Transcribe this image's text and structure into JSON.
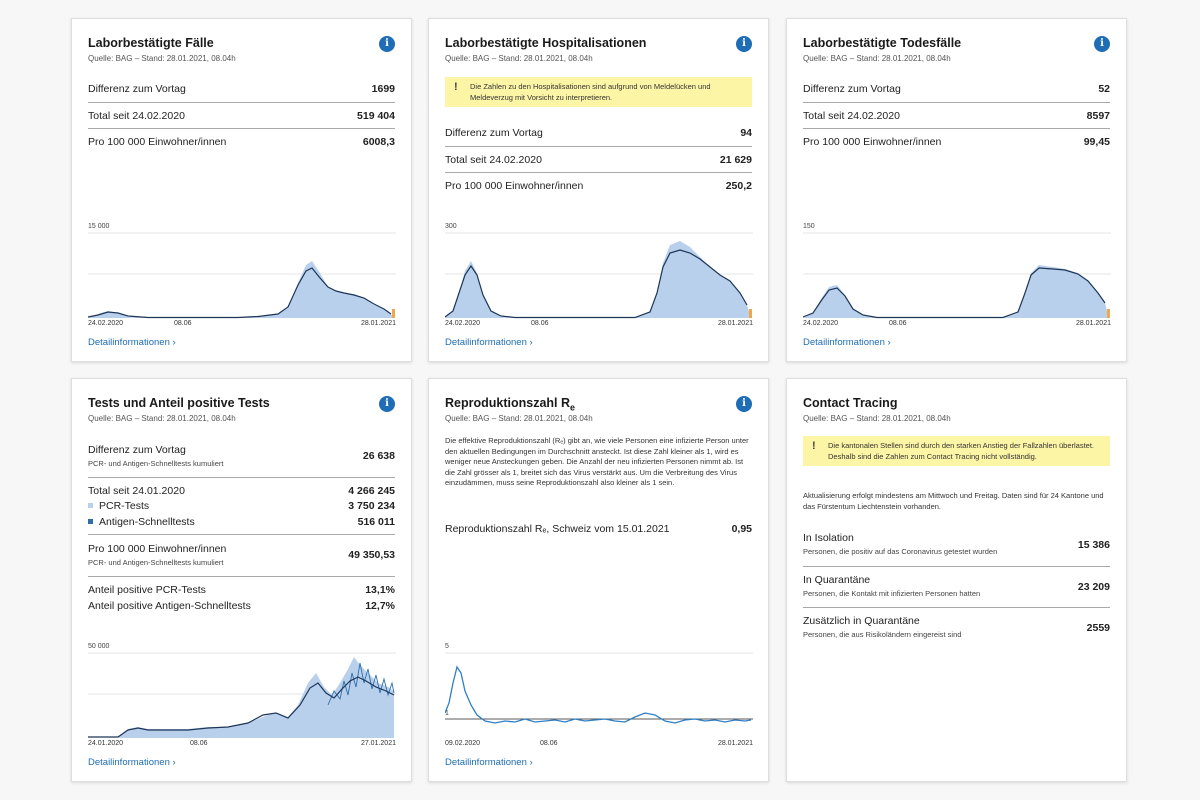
{
  "cards": {
    "cases": {
      "title": "Laborbestätigte Fälle",
      "source": "Quelle: BAG – Stand: 28.01.2021, 08.04h",
      "rows": [
        {
          "label": "Differenz zum Vortag",
          "value": "1699"
        },
        {
          "label": "Total seit 24.02.2020",
          "value": "519 404"
        },
        {
          "label": "Pro 100 000 Einwohner/innen",
          "value": "6008,3"
        }
      ],
      "chart": {
        "ytop": "15 000",
        "x_start": "24.02.2020",
        "x_mid": "08.06",
        "x_end": "28.01.2021"
      },
      "detail_link": "Detailinformationen"
    },
    "hosp": {
      "title": "Laborbestätigte Hospitalisationen",
      "source": "Quelle: BAG – Stand: 28.01.2021, 08.04h",
      "warning": "Die Zahlen zu den Hospitalisationen sind aufgrund von Meldelücken und Meldeverzug mit Vorsicht zu interpretieren.",
      "rows": [
        {
          "label": "Differenz zum Vortag",
          "value": "94"
        },
        {
          "label": "Total seit 24.02.2020",
          "value": "21 629"
        },
        {
          "label": "Pro 100 000 Einwohner/innen",
          "value": "250,2"
        }
      ],
      "chart": {
        "ytop": "300",
        "x_start": "24.02.2020",
        "x_mid": "08.06",
        "x_end": "28.01.2021"
      },
      "detail_link": "Detailinformationen"
    },
    "deaths": {
      "title": "Laborbestätigte Todesfälle",
      "source": "Quelle: BAG – Stand: 28.01.2021, 08.04h",
      "rows": [
        {
          "label": "Differenz zum Vortag",
          "value": "52"
        },
        {
          "label": "Total seit 24.02.2020",
          "value": "8597"
        },
        {
          "label": "Pro 100 000 Einwohner/innen",
          "value": "99,45"
        }
      ],
      "chart": {
        "ytop": "150",
        "x_start": "24.02.2020",
        "x_mid": "08.06",
        "x_end": "28.01.2021"
      },
      "detail_link": "Detailinformationen"
    },
    "tests": {
      "title": "Tests und Anteil positive Tests",
      "source": "Quelle: BAG – Stand: 28.01.2021, 08.04h",
      "diff": {
        "label": "Differenz zum Vortag",
        "sub": "PCR- und Antigen-Schnelltests kumuliert",
        "value": "26 638"
      },
      "total": {
        "label": "Total seit 24.01.2020",
        "value": "4 266 245"
      },
      "pcr": {
        "label": "PCR-Tests",
        "value": "3 750 234",
        "color": "#b8d0ec"
      },
      "antigen": {
        "label": "Antigen-Schnelltests",
        "value": "516 011",
        "color": "#2e6fab"
      },
      "per100k": {
        "label": "Pro 100 000 Einwohner/innen",
        "sub": "PCR- und Antigen-Schnelltests kumuliert",
        "value": "49 350,53"
      },
      "pos_pcr": {
        "label": "Anteil positive PCR-Tests",
        "value": "13,1%"
      },
      "pos_antigen": {
        "label": "Anteil positive Antigen-Schnelltests",
        "value": "12,7%"
      },
      "chart": {
        "ytop": "50 000",
        "x_start": "24.01.2020",
        "x_mid": "08.06",
        "x_end": "27.01.2021"
      },
      "detail_link": "Detailinformationen"
    },
    "repro": {
      "title": "Reproduktionszahl R",
      "title_sub": "e",
      "source": "Quelle: BAG – Stand: 28.01.2021, 08.04h",
      "description": "Die effektive Reproduktionszahl (Rₑ) gibt an, wie viele Personen eine infizierte Person unter den aktuellen Bedingungen im Durchschnitt ansteckt. Ist diese Zahl kleiner als 1, wird es weniger neue Ansteckungen geben. Die Anzahl der neu infizierten Personen nimmt ab. Ist die Zahl grösser als 1, breitet sich das Virus verstärkt aus. Um die Verbreitung des Virus einzudämmen, muss seine Reproduktionszahl also kleiner als 1 sein.",
      "value_row": {
        "label": "Reproduktionszahl Rₑ, Schweiz vom 15.01.2021",
        "value": "0,95"
      },
      "chart": {
        "ytop": "5",
        "yone": "1",
        "x_start": "09.02.2020",
        "x_mid": "08.06",
        "x_end": "28.01.2021"
      },
      "detail_link": "Detailinformationen"
    },
    "tracing": {
      "title": "Contact Tracing",
      "source": "Quelle: BAG – Stand: 28.01.2021, 08.04h",
      "warning": "Die kantonalen Stellen sind durch den starken Anstieg der Fallzahlen überlastet. Deshalb sind die Zahlen zum Contact Tracing nicht vollständig.",
      "note": "Aktualisierung erfolgt mindestens am Mittwoch und Freitag. Daten sind für 24 Kantone und das Fürstentum Liechtenstein vorhanden.",
      "isolation": {
        "label": "In Isolation",
        "sub": "Personen, die positiv auf das Coronavirus getestet wurden",
        "value": "15 386"
      },
      "quarantine": {
        "label": "In Quarantäne",
        "sub": "Personen, die Kontakt mit infizierten Personen hatten",
        "value": "23 209"
      },
      "extra": {
        "label": "Zusätzlich in Quarantäne",
        "sub": "Personen, die aus Risikoländern eingereist sind",
        "value": "2559"
      }
    }
  },
  "colors": {
    "accent": "#1e6db5",
    "bar": "#b8d0ec",
    "line": "#1d3557",
    "warning_bg": "#fdf5a6",
    "highlight": "#f0a64a"
  }
}
